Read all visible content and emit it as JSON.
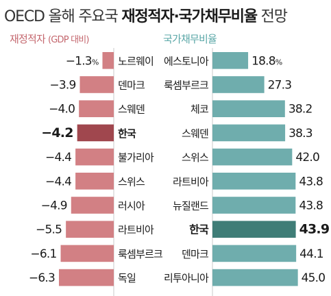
{
  "title": {
    "prefix": "OECD 올해 주요국 ",
    "bold": "재정적자·국가채무비율",
    "suffix": " 전망"
  },
  "left_header": {
    "label": "재정적자",
    "unit": "(GDP 대비)"
  },
  "right_header": {
    "label": "국가채무비율"
  },
  "colors": {
    "deficit_bar": "#d28084",
    "deficit_highlight": "#a0474e",
    "debt_bar": "#6fadad",
    "debt_highlight": "#3f7d77",
    "left_header": "#c4676e",
    "right_header": "#5aa7a7"
  },
  "chart_data": [
    {
      "type": "bar",
      "title": "재정적자",
      "ylabel": "(GDP 대비)",
      "categories": [
        "노르웨이",
        "덴마크",
        "스웨덴",
        "한국",
        "불가리아",
        "스위스",
        "러시아",
        "라트비아",
        "룩셈부르크",
        "독일"
      ],
      "values": [
        -1.3,
        -3.9,
        -4.0,
        -4.2,
        -4.4,
        -4.4,
        -4.9,
        -5.5,
        -6.1,
        -6.3
      ],
      "value_labels": [
        "−1.3",
        "−3.9",
        "−4.0",
        "−4.2",
        "−4.4",
        "−4.4",
        "−4.9",
        "−5.5",
        "−6.1",
        "−6.3"
      ],
      "unit_label": "%",
      "highlight": "한국",
      "orientation": "horizontal"
    },
    {
      "type": "bar",
      "title": "국가채무비율",
      "categories": [
        "에스토니아",
        "룩셈부르크",
        "체코",
        "스웨덴",
        "스위스",
        "라트비아",
        "뉴질랜드",
        "한국",
        "덴마크",
        "리투아니아"
      ],
      "values": [
        18.8,
        27.3,
        38.2,
        38.3,
        42.0,
        43.8,
        43.8,
        43.9,
        44.1,
        45.0
      ],
      "value_labels": [
        "18.8",
        "27.3",
        "38.2",
        "38.3",
        "42.0",
        "43.8",
        "43.8",
        "43.9",
        "44.1",
        "45.0"
      ],
      "unit_label": "%",
      "highlight": "한국",
      "orientation": "horizontal"
    }
  ]
}
